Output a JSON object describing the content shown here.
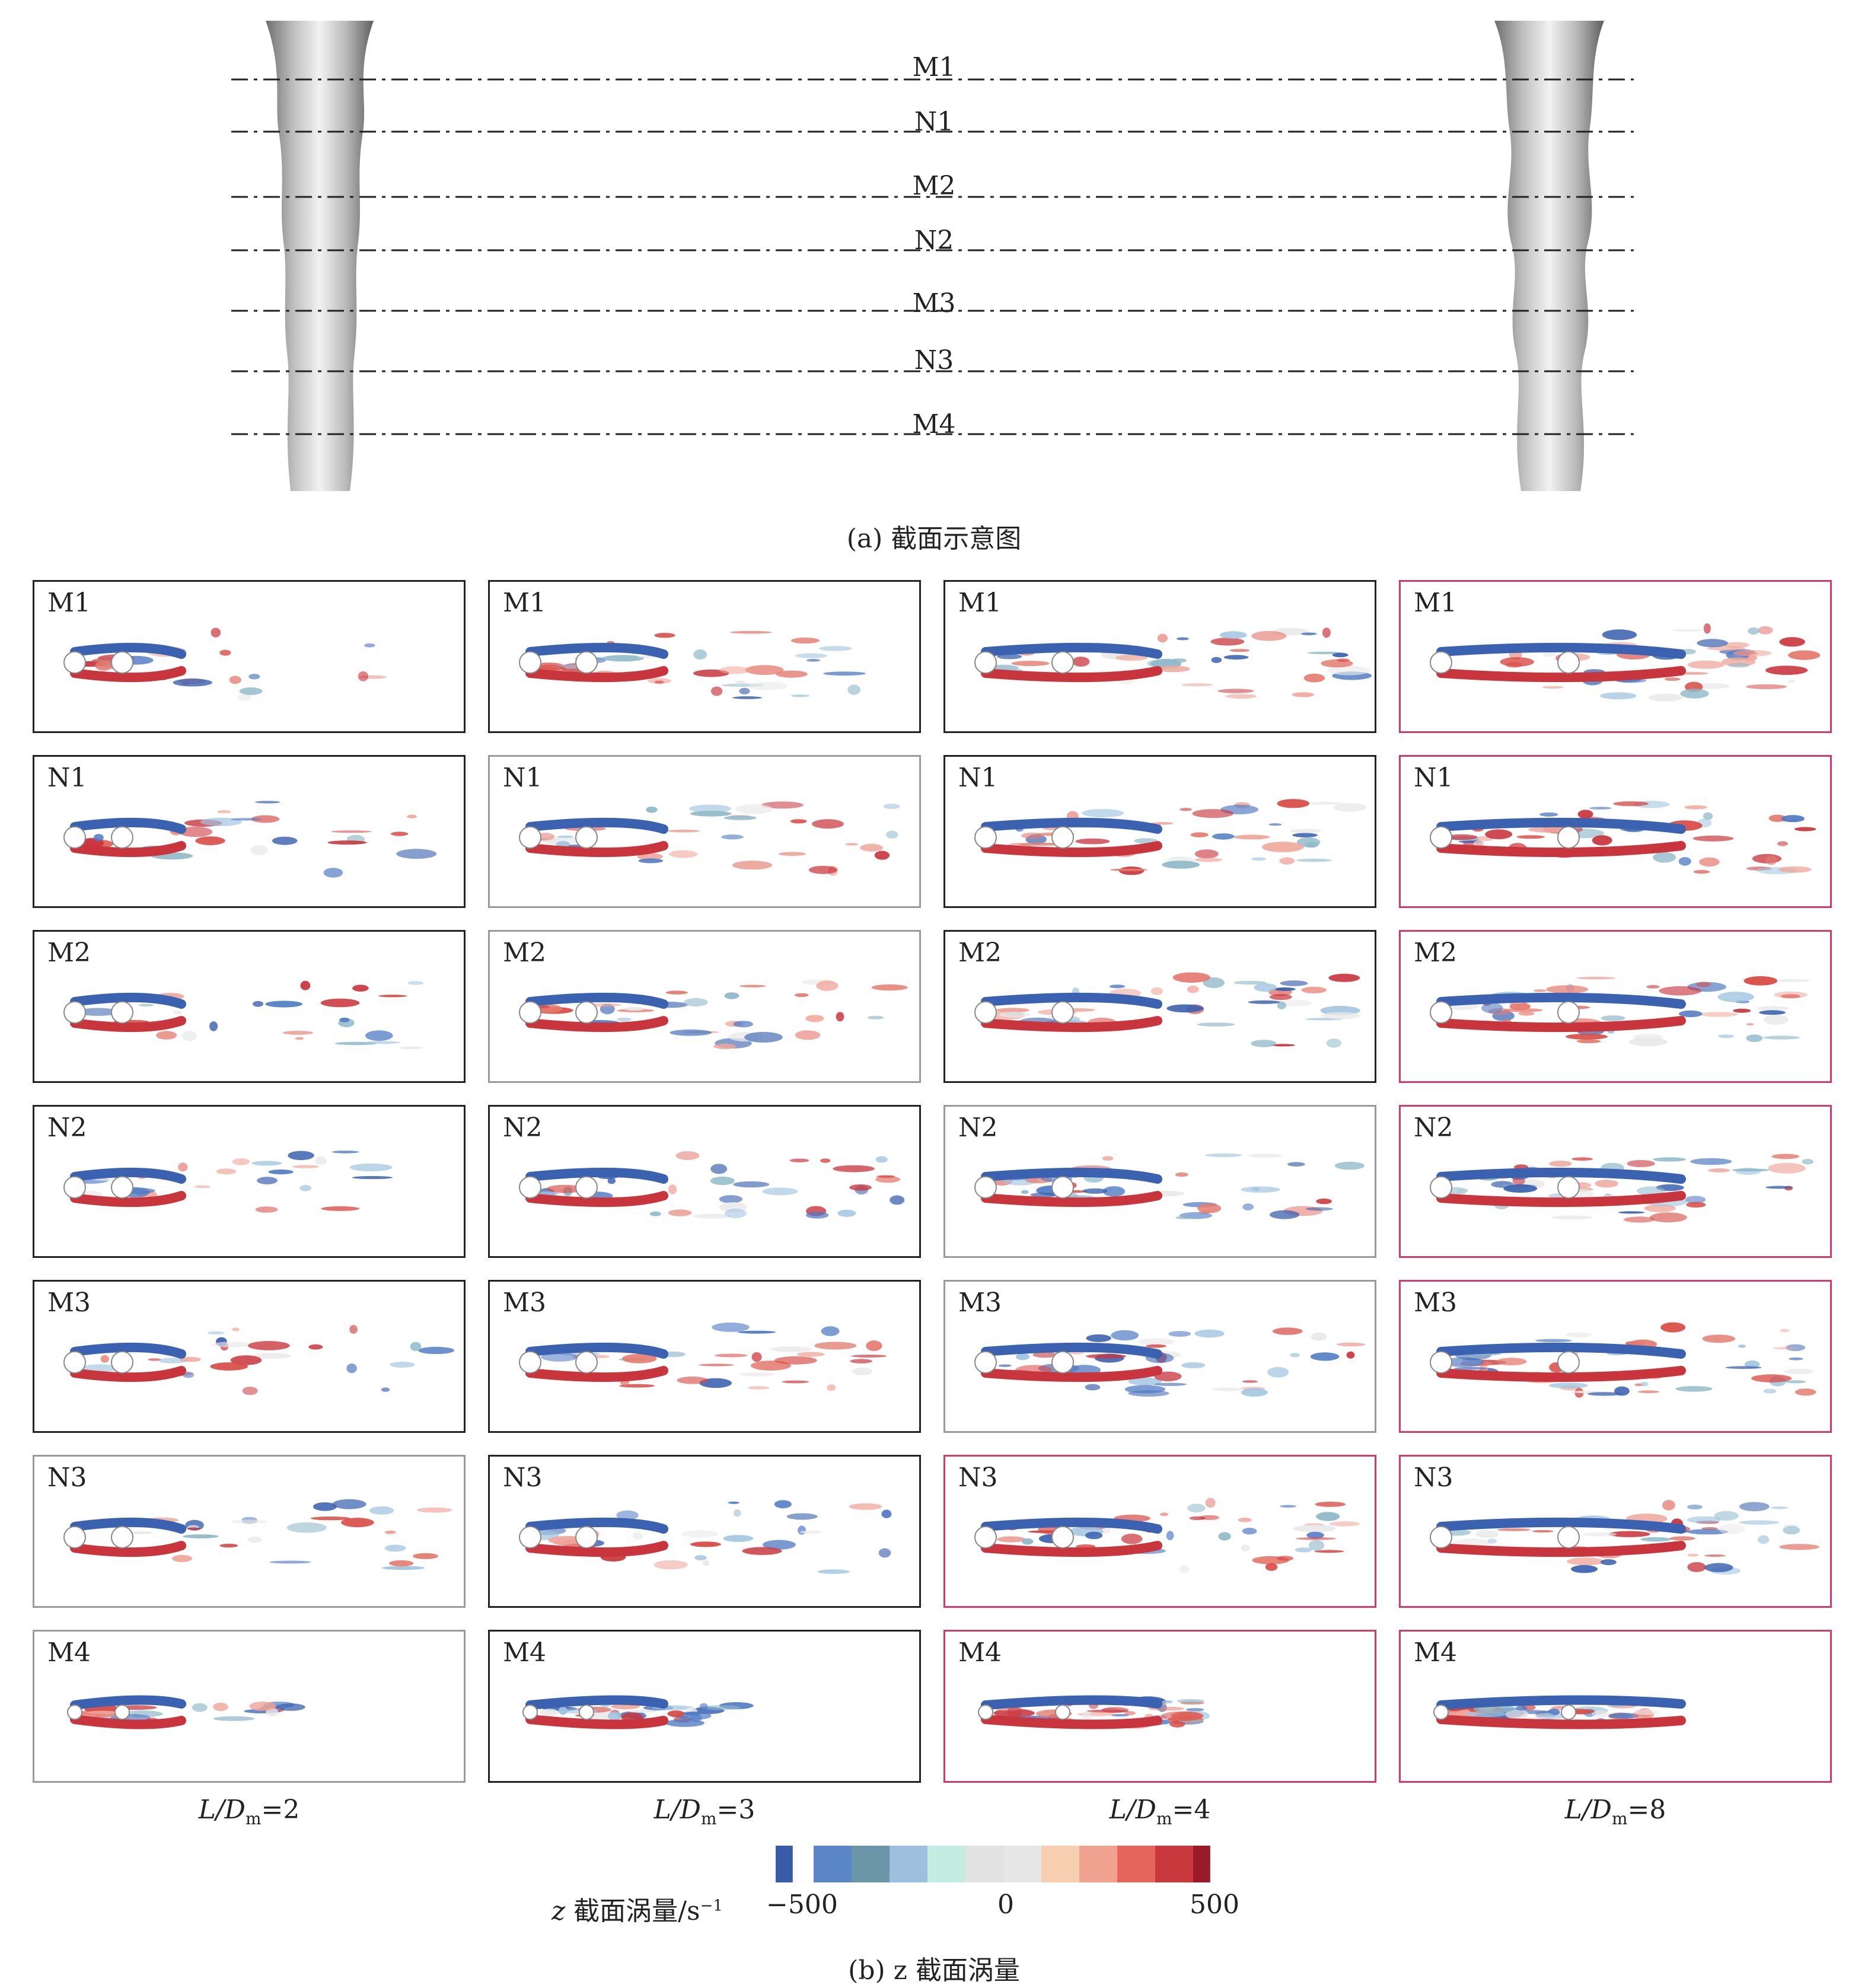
{
  "top": {
    "caption": "(a) 截面示意图",
    "sections": [
      "M1",
      "N1",
      "M2",
      "N2",
      "M3",
      "N3",
      "M4"
    ]
  },
  "rows": [
    "M1",
    "N1",
    "M2",
    "N2",
    "M3",
    "N3",
    "M4"
  ],
  "columns": [
    {
      "pre": "L/D",
      "sub": "m",
      "post": "=2"
    },
    {
      "pre": "L/D",
      "sub": "m",
      "post": "=3"
    },
    {
      "pre": "L/D",
      "sub": "m",
      "post": "=4"
    },
    {
      "pre": "L/D",
      "sub": "m",
      "post": "=8"
    }
  ],
  "highlighted": [
    [
      0,
      3
    ],
    [
      1,
      3
    ],
    [
      2,
      3
    ],
    [
      3,
      3
    ],
    [
      4,
      3
    ],
    [
      5,
      2
    ],
    [
      5,
      3
    ],
    [
      6,
      2
    ],
    [
      6,
      3
    ]
  ],
  "colorbar": {
    "title_italic": "z",
    "title_text": " 截面涡量/s",
    "title_sup": "−1",
    "ticks": [
      "−500",
      "0",
      "500"
    ],
    "colors": [
      "#3a5ba8",
      "#5a86c8",
      "#6b96a8",
      "#9ec0de",
      "#c4ece0",
      "#e2e2e2",
      "#e6e6e6",
      "#f7cfb0",
      "#f2a290",
      "#e5655a",
      "#c9383d",
      "#9a1a28"
    ]
  },
  "bottom_caption": "(b) z 截面涡量",
  "accent": "#d23a6a"
}
